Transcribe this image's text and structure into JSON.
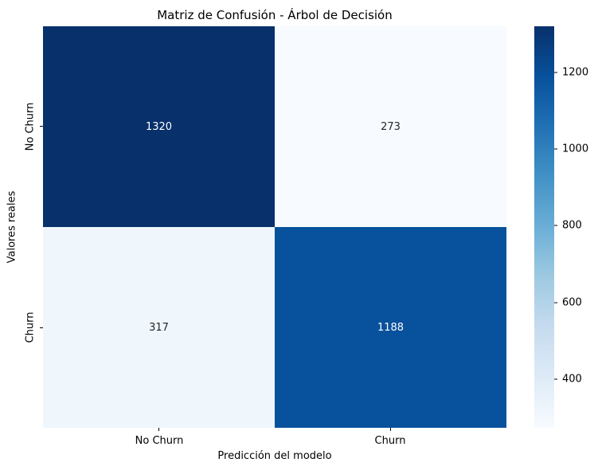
{
  "chart_data": {
    "type": "heatmap",
    "title": "Matriz de Confusión - Árbol de Decisión",
    "xlabel": "Predicción del modelo",
    "ylabel": "Valores reales",
    "x_categories": [
      "No Churn",
      "Churn"
    ],
    "y_categories": [
      "No Churn",
      "Churn"
    ],
    "values": [
      [
        1320,
        273
      ],
      [
        317,
        1188
      ]
    ],
    "vmin": 273,
    "vmax": 1320,
    "colormap": "Blues",
    "colormap_stops": [
      "#f7fbff",
      "#deebf7",
      "#c6dbef",
      "#9ecae1",
      "#6baed6",
      "#4292c6",
      "#2171b5",
      "#08519c",
      "#08306b"
    ],
    "colorbar_ticks": [
      400,
      600,
      800,
      1000,
      1200
    ],
    "cell_colors": [
      [
        "#08306b",
        "#f7fbff"
      ],
      [
        "#eff6fc",
        "#08519c"
      ]
    ],
    "cell_text_colors": [
      [
        "#ffffff",
        "#262626"
      ],
      [
        "#262626",
        "#ffffff"
      ]
    ],
    "grid": false,
    "legend_position": "colorbar-right"
  }
}
